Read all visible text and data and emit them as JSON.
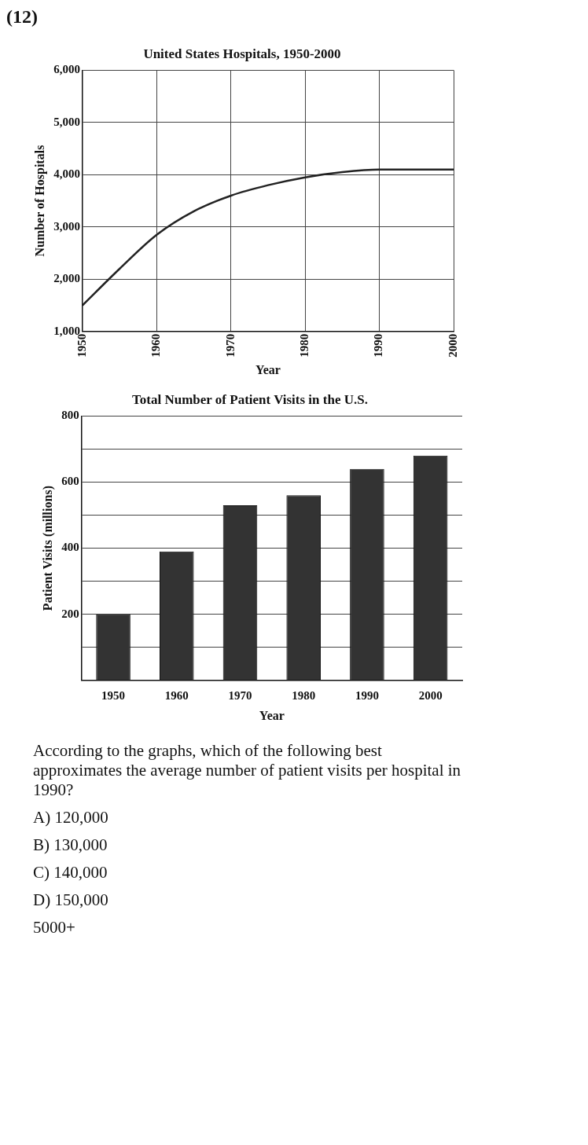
{
  "chart_data": [
    {
      "type": "line",
      "title": "United States Hospitals, 1950-2000",
      "xlabel": "Year",
      "ylabel": "Number of Hospitals",
      "x": [
        1950,
        1955,
        1960,
        1965,
        1970,
        1975,
        1980,
        1985,
        1990,
        1995,
        2000
      ],
      "series": [
        {
          "color": "#222222",
          "values": [
            1500,
            2200,
            2850,
            3300,
            3600,
            3800,
            3950,
            4050,
            4100,
            4100,
            4100
          ]
        }
      ],
      "xlim": [
        1950,
        2000
      ],
      "xticks": [
        1950,
        1960,
        1970,
        1980,
        1990,
        2000
      ],
      "ylim": [
        1000,
        6000
      ],
      "yticks": [
        {
          "value": 1000,
          "label": "1,000"
        },
        {
          "value": 2000,
          "label": "2,000"
        },
        {
          "value": 3000,
          "label": "3,000"
        },
        {
          "value": 4000,
          "label": "4,000"
        },
        {
          "value": 5000,
          "label": "5,000"
        },
        {
          "value": 6000,
          "label": "6,000"
        }
      ],
      "grid": true,
      "legend": false,
      "marker": "none",
      "line_style": "solid",
      "annotations": [
        "(12)"
      ]
    },
    {
      "type": "bar",
      "title": "Total Number of Patient Visits in the U.S.",
      "xlabel": "Year",
      "ylabel": "Patient Visits (millions)",
      "categories": [
        "1950",
        "1960",
        "1970",
        "1980",
        "1990",
        "2000"
      ],
      "values": [
        200,
        390,
        530,
        560,
        640,
        680
      ],
      "color": "#333333",
      "ylim": [
        0,
        800
      ],
      "yticks": [
        {
          "value": 0,
          "label": null
        },
        {
          "value": 100,
          "label": null
        },
        200,
        {
          "value": 300,
          "label": null
        },
        400,
        {
          "value": 500,
          "label": null
        },
        600,
        {
          "value": 700,
          "label": null
        },
        800
      ],
      "grid": "y",
      "legend": false,
      "annotations": [
        "According to the graphs, which of the following best approximates the average number of patient visits per hospital in 1990?",
        "A)  120,000",
        "B)  130,000",
        "C)  140,000",
        "D)  150,000",
        "5000+"
      ]
    }
  ]
}
